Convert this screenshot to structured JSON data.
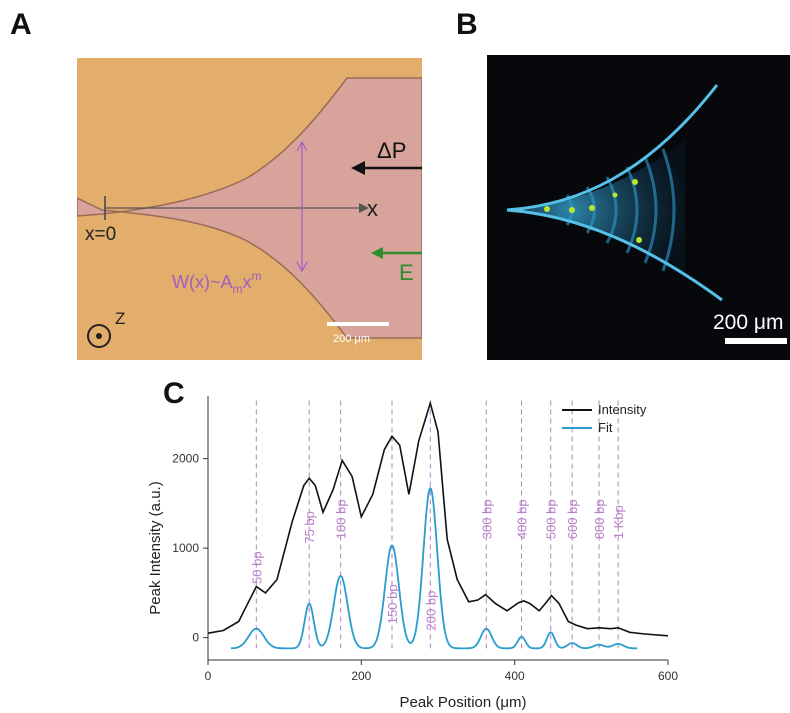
{
  "figure": {
    "panel_labels": {
      "a": "A",
      "b": "B",
      "c": "C"
    }
  },
  "panelA": {
    "x0_label": "x=0",
    "x_axis_label": "x",
    "pressure_label": "ΔP",
    "field_label": "E",
    "width_formula": {
      "W": "W(x)~A",
      "sub": "m",
      "x": "x",
      "sup": "m"
    },
    "z_label": "Z",
    "scale_bar": "200 μm",
    "colors": {
      "background": "#e3ad6c",
      "channel": "#d8a39a",
      "width_arrow": "#a05ec2",
      "field_arrow": "#2e8b2e",
      "axis": "#555555"
    }
  },
  "panelB": {
    "scale_bar": "200 μm",
    "colors": {
      "background": "#06080c",
      "glow": "#3ab0e0",
      "hot": "#b8e830"
    }
  },
  "chart_data": {
    "type": "line",
    "xlabel": "Peak Position (μm)",
    "ylabel": "Peak Intensity (a.u.)",
    "xlim": [
      0,
      600
    ],
    "ylim": [
      -250,
      2700
    ],
    "xticks": [
      0,
      200,
      400,
      600
    ],
    "yticks": [
      0,
      1000,
      2000
    ],
    "legend": {
      "placement": "top-right"
    },
    "series": [
      {
        "name": "Intensity",
        "color": "#111111",
        "x": [
          0,
          20,
          40,
          50,
          63,
          75,
          90,
          110,
          125,
          132,
          140,
          150,
          163,
          175,
          188,
          200,
          215,
          230,
          240,
          250,
          262,
          275,
          290,
          300,
          312,
          325,
          340,
          352,
          362,
          375,
          390,
          405,
          412,
          420,
          432,
          440,
          448,
          458,
          470,
          480,
          495,
          510,
          525,
          535,
          550,
          570,
          600
        ],
        "y": [
          50,
          80,
          180,
          350,
          570,
          500,
          650,
          1300,
          1700,
          1780,
          1700,
          1400,
          1650,
          1980,
          1800,
          1350,
          1600,
          2100,
          2250,
          2150,
          1600,
          2200,
          2620,
          2300,
          1100,
          650,
          400,
          420,
          480,
          380,
          300,
          390,
          410,
          380,
          300,
          380,
          470,
          380,
          180,
          140,
          100,
          110,
          100,
          110,
          60,
          40,
          20
        ]
      },
      {
        "name": "Fit",
        "color": "#2a9ccd",
        "peaks": [
          {
            "center": 63,
            "height": 220,
            "sigma": 10
          },
          {
            "center": 132,
            "height": 500,
            "sigma": 6
          },
          {
            "center": 173,
            "height": 810,
            "sigma": 9
          },
          {
            "center": 240,
            "height": 1150,
            "sigma": 9
          },
          {
            "center": 290,
            "height": 1790,
            "sigma": 9
          },
          {
            "center": 363,
            "height": 220,
            "sigma": 7
          },
          {
            "center": 409,
            "height": 130,
            "sigma": 5
          },
          {
            "center": 447,
            "height": 180,
            "sigma": 5
          },
          {
            "center": 475,
            "height": 60,
            "sigma": 6
          },
          {
            "center": 510,
            "height": 40,
            "sigma": 7
          },
          {
            "center": 535,
            "height": 50,
            "sigma": 7
          }
        ],
        "baseline": -120
      }
    ],
    "annotations": [
      {
        "x": 63,
        "text": "50 bp",
        "ypos": 600
      },
      {
        "x": 132,
        "text": "75 bp",
        "ypos": 1050
      },
      {
        "x": 173,
        "text": "100 bp",
        "ypos": 1100
      },
      {
        "x": 240,
        "text": "150 bp",
        "ypos": 150
      },
      {
        "x": 290,
        "text": "200 bp",
        "ypos": 80
      },
      {
        "x": 363,
        "text": "300 bp",
        "ypos": 1100
      },
      {
        "x": 409,
        "text": "400 bp",
        "ypos": 1100
      },
      {
        "x": 447,
        "text": "500 bp",
        "ypos": 1100
      },
      {
        "x": 475,
        "text": "600 bp",
        "ypos": 1100
      },
      {
        "x": 510,
        "text": "800 bp",
        "ypos": 1100
      },
      {
        "x": 535,
        "text": "1 Kbp",
        "ypos": 1100
      }
    ],
    "annotation_color": "#b77ec8"
  }
}
